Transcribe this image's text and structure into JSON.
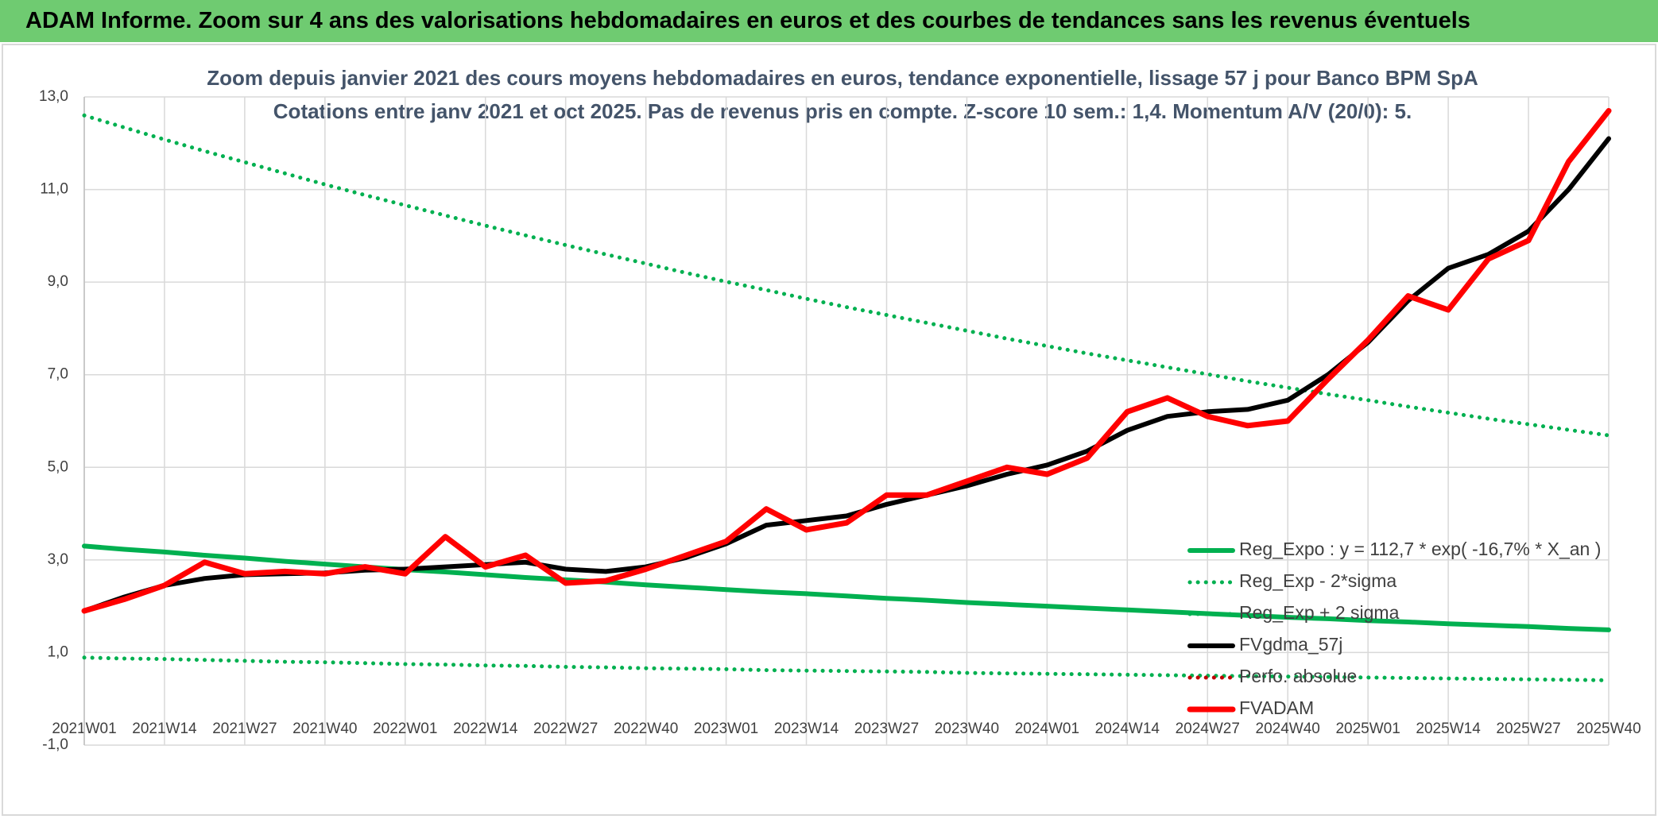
{
  "header": {
    "title": "ADAM Informe. Zoom sur 4 ans des valorisations hebdomadaires en euros et des courbes de tendances sans les revenus éventuels"
  },
  "chart_data": {
    "type": "line",
    "title": "Zoom depuis janvier 2021 des cours moyens hebdomadaires en euros, tendance exponentielle, lissage 57 j pour Banco BPM SpA",
    "subtitle": "Cotations entre janv 2021 et oct 2025. Pas de revenus pris en compte. Z-score 10 sem.: 1,4. Momentum A/V (20/0): 5.",
    "categories": [
      "2021W01",
      null,
      "2021W14",
      null,
      "2021W27",
      null,
      "2021W40",
      null,
      "2022W01",
      null,
      "2022W14",
      null,
      "2022W27",
      null,
      "2022W40",
      null,
      "2023W01",
      null,
      "2023W14",
      null,
      "2023W27",
      null,
      "2023W40",
      null,
      "2024W01",
      null,
      "2024W14",
      null,
      "2024W27",
      null,
      "2024W40",
      null,
      "2025W01",
      null,
      "2025W14",
      null,
      "2025W27",
      null,
      "2025W40"
    ],
    "ylim": [
      -1,
      13
    ],
    "yticks": [
      {
        "value": -1,
        "label": "-1,0"
      },
      {
        "value": 1,
        "label": "1,0"
      },
      {
        "value": 3,
        "label": "3,0"
      },
      {
        "value": 5,
        "label": "5,0"
      },
      {
        "value": 7,
        "label": "7,0"
      },
      {
        "value": 9,
        "label": "9,0"
      },
      {
        "value": 11,
        "label": "11,0"
      },
      {
        "value": 13,
        "label": "13,0"
      }
    ],
    "grid": true,
    "legend": "right",
    "series": [
      {
        "name": "Reg_Expo : y = 112,7 * exp( -16,7% *  X_an )",
        "color": "#00b050",
        "line_style": "solid",
        "values": [
          3.3,
          3.23,
          3.17,
          3.1,
          3.04,
          2.97,
          2.91,
          2.85,
          2.79,
          2.74,
          2.68,
          2.62,
          2.57,
          2.52,
          2.46,
          2.41,
          2.36,
          2.31,
          2.27,
          2.22,
          2.17,
          2.13,
          2.08,
          2.04,
          2.0,
          1.96,
          1.92,
          1.88,
          1.84,
          1.8,
          1.76,
          1.73,
          1.69,
          1.66,
          1.62,
          1.59,
          1.56,
          1.52,
          1.49
        ]
      },
      {
        "name": "Reg_Exp - 2*sigma",
        "color": "#00b050",
        "line_style": "dotted",
        "values": [
          0.89,
          0.87,
          0.86,
          0.84,
          0.82,
          0.8,
          0.79,
          0.77,
          0.75,
          0.74,
          0.72,
          0.71,
          0.69,
          0.68,
          0.66,
          0.65,
          0.64,
          0.62,
          0.61,
          0.6,
          0.59,
          0.58,
          0.56,
          0.55,
          0.54,
          0.53,
          0.52,
          0.51,
          0.5,
          0.49,
          0.48,
          0.47,
          0.46,
          0.45,
          0.44,
          0.43,
          0.42,
          0.41,
          0.4
        ]
      },
      {
        "name": "Reg_Exp + 2 sigma",
        "color": "#00b050",
        "line_style": "dotted",
        "values": [
          12.6,
          12.34,
          12.08,
          11.83,
          11.59,
          11.35,
          11.11,
          10.88,
          10.66,
          10.44,
          10.22,
          10.01,
          9.8,
          9.6,
          9.4,
          9.2,
          9.01,
          8.83,
          8.64,
          8.46,
          8.29,
          8.12,
          7.95,
          7.78,
          7.62,
          7.46,
          7.31,
          7.16,
          7.01,
          6.86,
          6.72,
          6.58,
          6.45,
          6.31,
          6.18,
          6.05,
          5.93,
          5.81,
          5.69
        ]
      },
      {
        "name": "FVgdma_57j",
        "color": "#000000",
        "line_style": "solid",
        "values": [
          1.9,
          2.2,
          2.45,
          2.6,
          2.68,
          2.7,
          2.72,
          2.78,
          2.8,
          2.85,
          2.9,
          2.95,
          2.8,
          2.75,
          2.85,
          3.05,
          3.35,
          3.75,
          3.85,
          3.95,
          4.2,
          4.4,
          4.6,
          4.85,
          5.05,
          5.35,
          5.8,
          6.1,
          6.2,
          6.25,
          6.45,
          7.0,
          7.7,
          8.6,
          9.3,
          9.6,
          10.1,
          11.0,
          12.1
        ]
      },
      {
        "name": "Perfo. absolue",
        "color": "#c00000",
        "line_style": "dotted",
        "values": [
          1.9,
          2.15,
          2.45,
          2.95,
          2.7,
          2.75,
          2.7,
          2.85,
          2.7,
          3.5,
          2.85,
          3.1,
          2.5,
          2.55,
          2.8,
          3.1,
          3.4,
          4.1,
          3.65,
          3.8,
          4.4,
          4.4,
          4.7,
          5.0,
          4.85,
          5.2,
          6.2,
          6.5,
          6.1,
          5.9,
          6.0,
          6.9,
          7.75,
          8.7,
          8.4,
          9.5,
          9.9,
          11.6,
          12.7
        ]
      },
      {
        "name": "FVADAM",
        "color": "#ff0000",
        "line_style": "solid",
        "values": [
          1.9,
          2.15,
          2.45,
          2.95,
          2.7,
          2.75,
          2.7,
          2.85,
          2.7,
          3.5,
          2.85,
          3.1,
          2.5,
          2.55,
          2.8,
          3.1,
          3.4,
          4.1,
          3.65,
          3.8,
          4.4,
          4.4,
          4.7,
          5.0,
          4.85,
          5.2,
          6.2,
          6.5,
          6.1,
          5.9,
          6.0,
          6.9,
          7.75,
          8.7,
          8.4,
          9.5,
          9.9,
          11.6,
          12.7
        ]
      }
    ]
  }
}
